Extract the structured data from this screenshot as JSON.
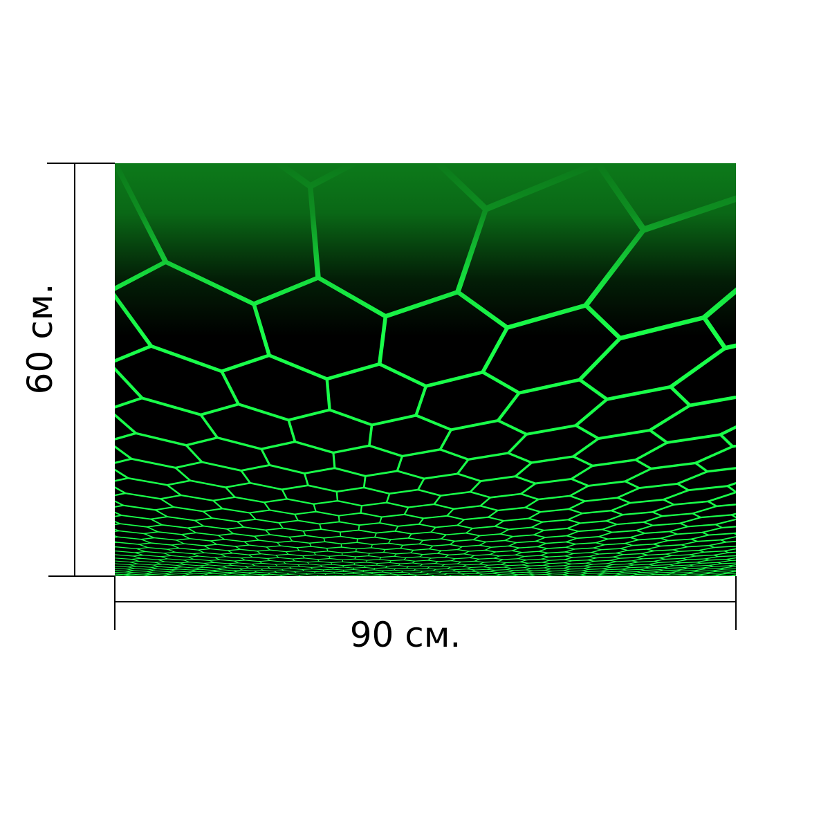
{
  "product": {
    "image_subject": "green-hexagon-grid-perspective",
    "colors": {
      "background": "#000000",
      "grid_line": "#19ff4a",
      "grid_far": "#0f8a1e"
    }
  },
  "dimensions": {
    "width_label": "90 см.",
    "height_label": "60 см."
  }
}
